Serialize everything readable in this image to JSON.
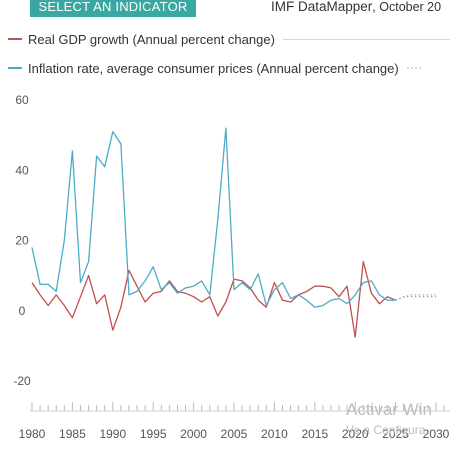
{
  "header": {
    "indicator_button_label": "SELECT AN INDICATOR",
    "source": "IMF DataMapper",
    "edition": ", October 20"
  },
  "legend": [
    {
      "label": "Real GDP growth (Annual percent change)",
      "color": "#c0504d"
    },
    {
      "label": "Inflation rate, average consumer prices (Annual percent change)",
      "color": "#4bacc6"
    }
  ],
  "watermark": {
    "line1": "Activar Win",
    "line2": "Ve a Configura"
  },
  "chart_data": {
    "type": "line",
    "title": "",
    "xlabel": "",
    "ylabel": "",
    "xlim": [
      1980,
      2031
    ],
    "ylim": [
      -20,
      60
    ],
    "yticks": [
      -20,
      0,
      20,
      40,
      60
    ],
    "xticks": [
      1980,
      1985,
      1990,
      1995,
      2000,
      2005,
      2010,
      2015,
      2020,
      2025,
      2030
    ],
    "grid": false,
    "legend_position": "top",
    "projection_start": 2025,
    "series": [
      {
        "name": "Real GDP growth (Annual percent change)",
        "color": "#c0504d",
        "x": [
          1980,
          1981,
          1982,
          1983,
          1984,
          1985,
          1986,
          1987,
          1988,
          1989,
          1990,
          1991,
          1992,
          1993,
          1994,
          1995,
          1996,
          1997,
          1998,
          1999,
          2000,
          2001,
          2002,
          2003,
          2004,
          2005,
          2006,
          2007,
          2008,
          2009,
          2010,
          2011,
          2012,
          2013,
          2014,
          2015,
          2016,
          2017,
          2018,
          2019,
          2020,
          2021,
          2022,
          2023,
          2024,
          2025,
          2026,
          2027,
          2028,
          2029,
          2030
        ],
        "values": [
          8,
          4.5,
          1.5,
          4.5,
          1.5,
          -2,
          4,
          10,
          2,
          4.5,
          -5.5,
          1,
          11.5,
          7,
          2.5,
          5,
          5.5,
          8.5,
          5.5,
          5,
          4,
          2.5,
          4,
          -1.5,
          2.5,
          9,
          8.5,
          6.5,
          3,
          1,
          8,
          3,
          2.5,
          4.5,
          5.5,
          7,
          7,
          6.5,
          4,
          7,
          -7.5,
          14,
          5,
          2,
          4,
          3,
          4,
          4,
          4,
          4,
          4
        ]
      },
      {
        "name": "Inflation rate, average consumer prices (Annual percent change)",
        "color": "#4bacc6",
        "x": [
          1980,
          1981,
          1982,
          1983,
          1984,
          1985,
          1986,
          1987,
          1988,
          1989,
          1990,
          1991,
          1992,
          1993,
          1994,
          1995,
          1996,
          1997,
          1998,
          1999,
          2000,
          2001,
          2002,
          2003,
          2004,
          2005,
          2006,
          2007,
          2008,
          2009,
          2010,
          2011,
          2012,
          2013,
          2014,
          2015,
          2016,
          2017,
          2018,
          2019,
          2020,
          2021,
          2022,
          2023,
          2024,
          2025,
          2026,
          2027,
          2028,
          2029,
          2030
        ],
        "values": [
          18,
          7.5,
          7.5,
          5.5,
          20,
          45.5,
          8,
          14,
          44,
          41,
          51,
          47.5,
          4.5,
          5.5,
          8.5,
          12.5,
          6,
          8,
          5,
          6.5,
          7,
          8.5,
          4.5,
          26,
          52,
          6,
          8,
          6,
          10.5,
          1.5,
          6,
          8,
          3.5,
          4.5,
          3,
          1,
          1.5,
          3,
          3.5,
          2,
          4.5,
          8,
          8.5,
          4.5,
          3,
          3,
          4,
          4.5,
          4.5,
          4.5,
          4.5
        ]
      }
    ]
  }
}
